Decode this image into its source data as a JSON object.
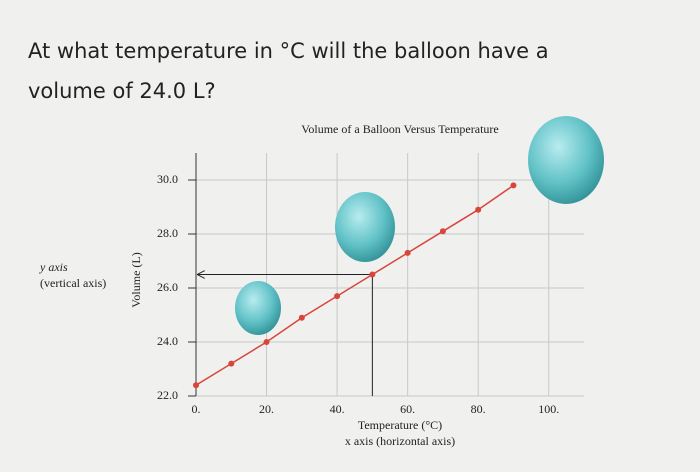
{
  "question": [
    "At what temperature in °C will the balloon have a",
    "volume of 24.0 L?"
  ],
  "chart_data": {
    "type": "line",
    "title": "Volume of a Balloon Versus Temperature",
    "x_label": "Temperature (°C)",
    "y_label": "Volume (L)",
    "y_annotation": [
      "y axis",
      "(vertical axis)"
    ],
    "x_annotation": "x axis (horizontal axis)",
    "x": [
      0,
      10,
      20,
      30,
      40,
      50,
      60,
      70,
      80,
      90
    ],
    "values": [
      22.4,
      23.2,
      24.0,
      24.9,
      25.7,
      26.5,
      27.3,
      28.1,
      28.9,
      29.8
    ],
    "color": "#d9453b",
    "xlim": [
      0,
      110
    ],
    "ylim": [
      22,
      31
    ],
    "xticks": [
      {
        "value": 0,
        "label": "0."
      },
      {
        "value": 20,
        "label": "20."
      },
      {
        "value": 40,
        "label": "40."
      },
      {
        "value": 60,
        "label": "60."
      },
      {
        "value": 80,
        "label": "80."
      },
      {
        "value": 100,
        "label": "100."
      }
    ],
    "yticks": [
      {
        "value": 22,
        "label": "22.0"
      },
      {
        "value": 24,
        "label": "24.0"
      },
      {
        "value": 26,
        "label": "26.0"
      },
      {
        "value": 28,
        "label": "28.0"
      },
      {
        "value": 30,
        "label": "30.0"
      }
    ],
    "grid": true
  }
}
